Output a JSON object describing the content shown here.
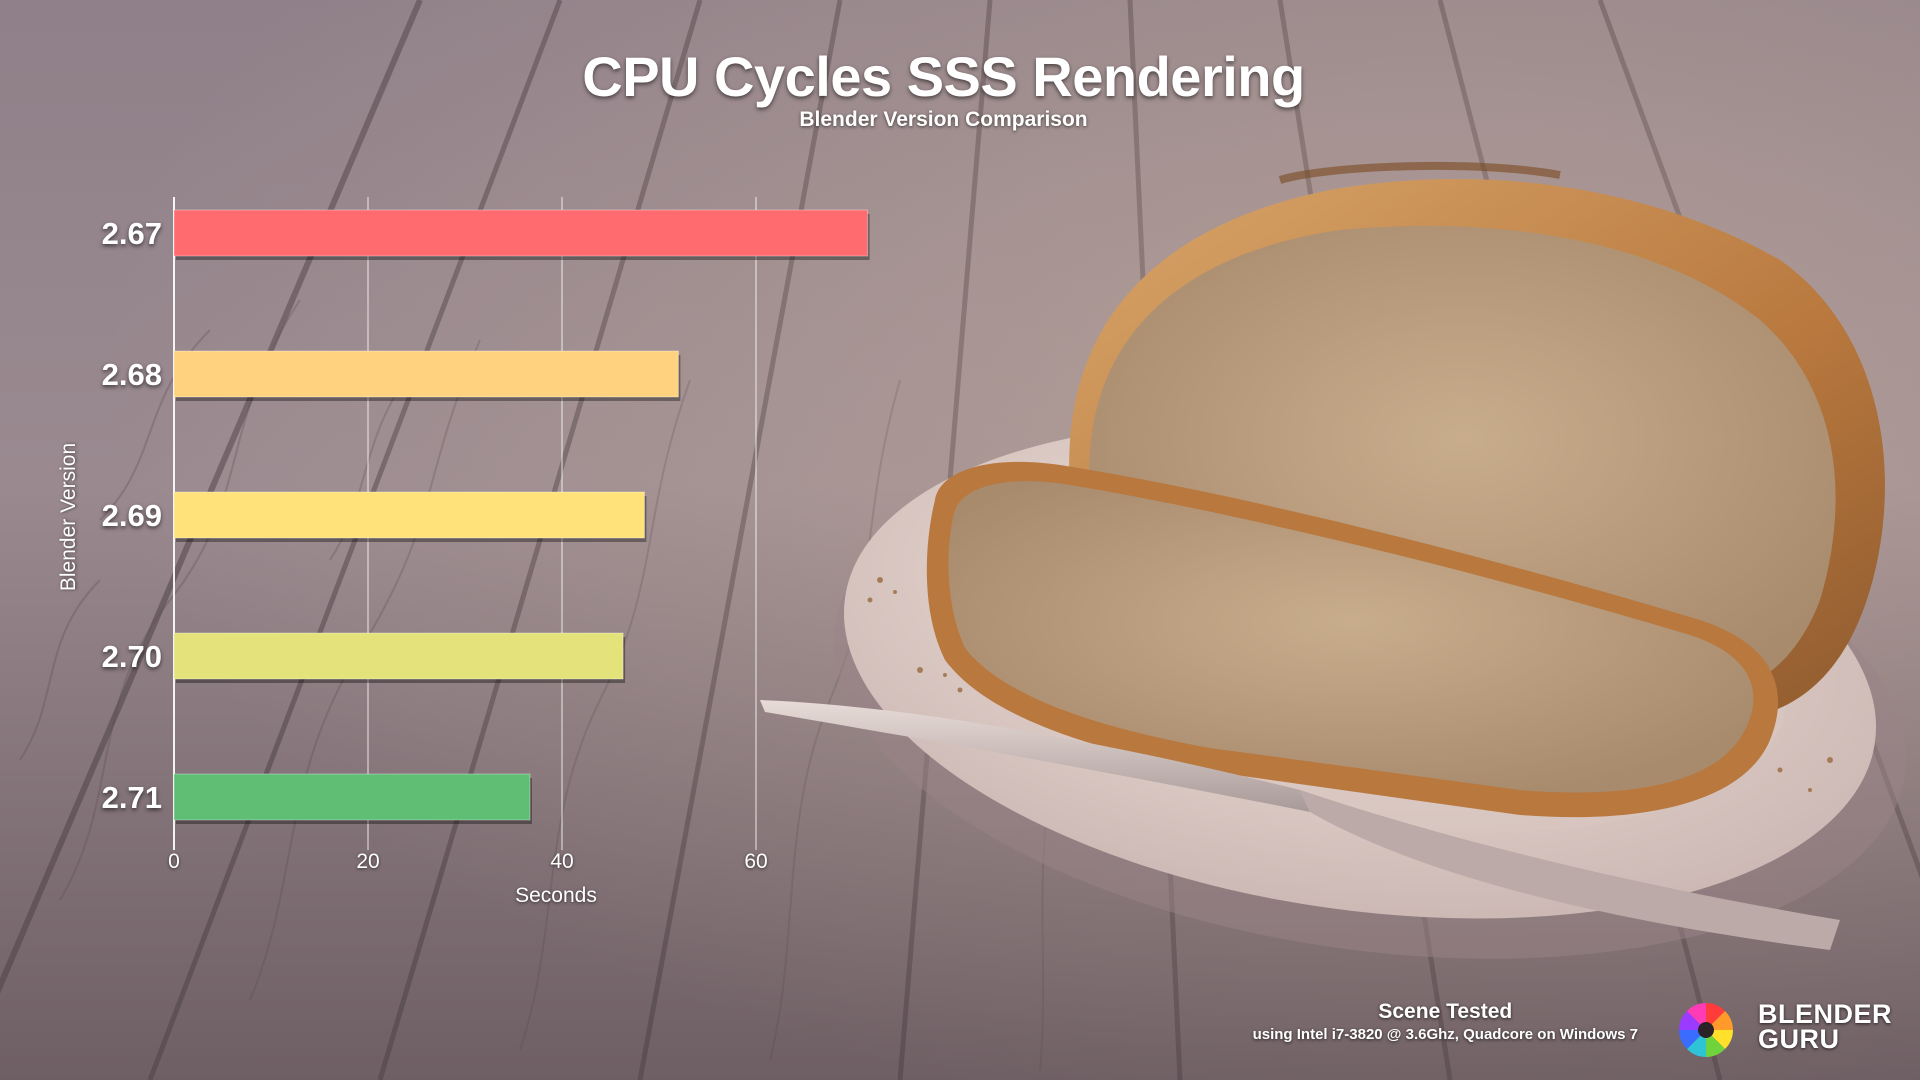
{
  "title": "CPU Cycles SSS Rendering",
  "subtitle": "Blender Version Comparison",
  "footer": {
    "title": "Scene Tested",
    "subtitle": "using Intel i7-3820 @ 3.6Ghz, Quadcore  on Windows 7"
  },
  "logo": {
    "line1": "BLENDER",
    "line2": "GURU",
    "icon": "rainbow-swirl-icon"
  },
  "background": {
    "description_icons": [
      "wood-planks",
      "bread-loaf",
      "plate",
      "knife"
    ]
  },
  "chart_data": {
    "type": "bar",
    "orientation": "horizontal",
    "categories": [
      "2.67",
      "2.68",
      "2.69",
      "2.70",
      "2.71"
    ],
    "values": [
      71.5,
      52,
      48.5,
      46.3,
      36.7
    ],
    "bar_colors": [
      "#ff6b6e",
      "#ffd27f",
      "#ffe27a",
      "#e4e27a",
      "#5fbe74"
    ],
    "xlabel": "Seconds",
    "ylabel": "Blender Version",
    "xticks": [
      0,
      20,
      40,
      60
    ],
    "xlim": [
      0,
      80
    ],
    "grid": true,
    "legend": "none"
  }
}
